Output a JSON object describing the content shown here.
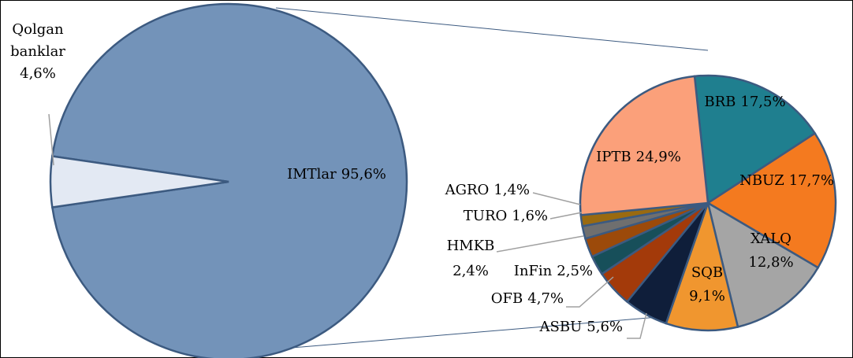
{
  "chart_data": [
    {
      "type": "pie",
      "categories": [
        "IMTlar",
        "Qolgan banklar"
      ],
      "values": [
        95.6,
        4.6
      ],
      "value_labels": [
        "95,6%",
        "4,6%"
      ],
      "colors": [
        "#7393b9",
        "#e3e9f3"
      ]
    },
    {
      "type": "pie",
      "categories": [
        "BRB",
        "NBUZ",
        "XALQ",
        "SQB",
        "ASBU",
        "OFB",
        "InFin",
        "HMKB",
        "TURO",
        "AGRO",
        "IPTB"
      ],
      "values": [
        17.5,
        17.7,
        12.8,
        9.1,
        5.6,
        4.7,
        2.5,
        2.4,
        1.6,
        1.4,
        24.9
      ],
      "value_labels": [
        "17,5%",
        "17,7%",
        "12,8%",
        "9,1%",
        "5,6%",
        "4,7%",
        "2,5%",
        "2,4%",
        "1,6%",
        "1,4%",
        "24,9%"
      ],
      "colors": [
        "#1f7f8f",
        "#f47a1f",
        "#a5a5a5",
        "#f0962f",
        "#0f1e3a",
        "#a33a0a",
        "#174f5a",
        "#9c4a0a",
        "#6f6f6f",
        "#9a6a10",
        "#fba07a"
      ]
    }
  ]
}
